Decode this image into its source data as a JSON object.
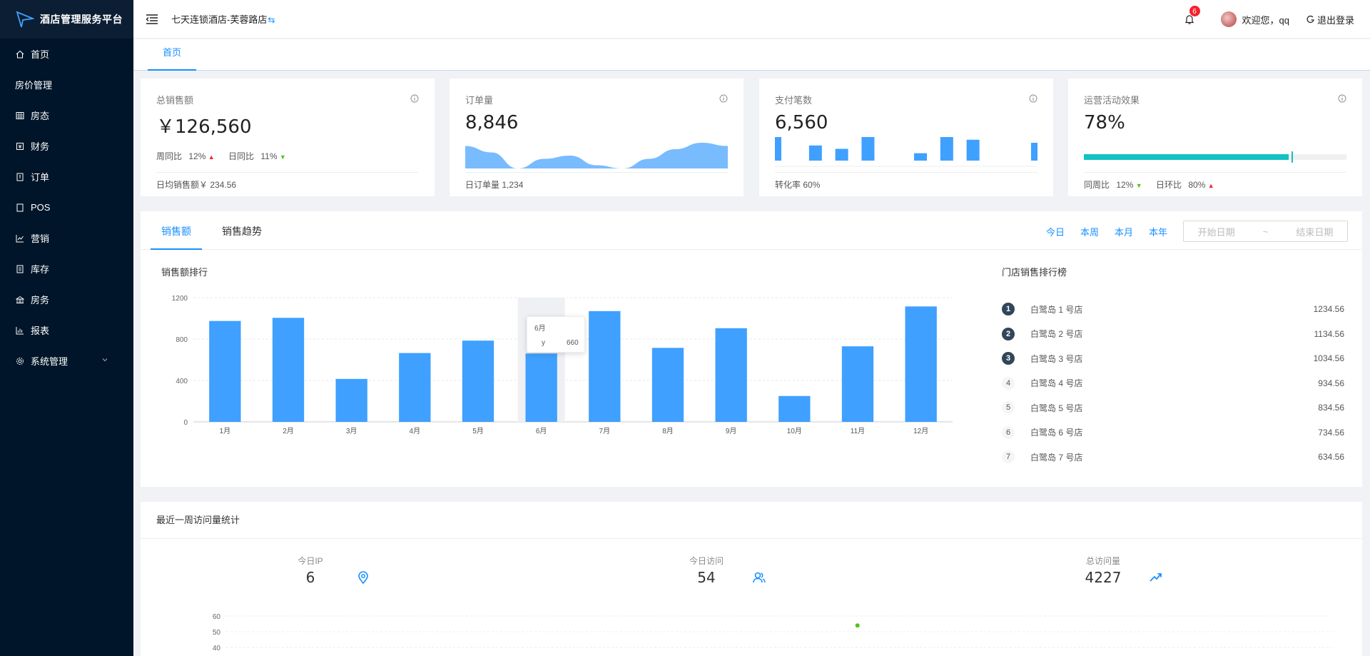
{
  "app": {
    "title": "酒店管理服务平台"
  },
  "sidebar": {
    "items": [
      {
        "label": "首页",
        "icon": "home-icon"
      },
      {
        "label": "房价管理",
        "icon": ""
      },
      {
        "label": "房态",
        "icon": "grid-icon"
      },
      {
        "label": "财务",
        "icon": "finance-icon"
      },
      {
        "label": "订单",
        "icon": "order-icon"
      },
      {
        "label": "POS",
        "icon": "pos-icon"
      },
      {
        "label": "营销",
        "icon": "chart-line-icon"
      },
      {
        "label": "库存",
        "icon": "inventory-icon"
      },
      {
        "label": "房务",
        "icon": "house-icon"
      },
      {
        "label": "报表",
        "icon": "report-icon"
      },
      {
        "label": "系统管理",
        "icon": "gear-icon"
      }
    ]
  },
  "header": {
    "hotel_name": "七天连锁酒店-芙蓉路店",
    "switch_glyph": "⇆",
    "notification_count": "6",
    "welcome": "欢迎您，qq",
    "logout": "退出登录"
  },
  "tabs": {
    "home": "首页"
  },
  "cards": {
    "sales": {
      "title": "总销售额",
      "value": "￥126,560",
      "week_label": "周同比",
      "week_value": "12%",
      "day_label": "日同比",
      "day_value": "11%",
      "footer_label": "日均销售额￥",
      "footer_value": "234.56"
    },
    "orders": {
      "title": "订单量",
      "value": "8,846",
      "footer_label": "日订单量",
      "footer_value": "1,234"
    },
    "payments": {
      "title": "支付笔数",
      "value": "6,560",
      "footer_label": "转化率",
      "footer_value": "60%"
    },
    "operations": {
      "title": "运营活动效果",
      "value": "78%",
      "progress": 0.78,
      "target": 0.79,
      "week_label": "同周比",
      "week_value": "12%",
      "day_label": "日环比",
      "day_value": "80%"
    }
  },
  "sales_panel": {
    "tab_sales": "销售额",
    "tab_trend": "销售趋势",
    "ranges": [
      "今日",
      "本周",
      "本月",
      "本年"
    ],
    "start_placeholder": "开始日期",
    "separator": "~",
    "end_placeholder": "结束日期",
    "chart_title": "销售额排行",
    "rank_title": "门店销售排行榜",
    "ranking": [
      {
        "rank": "1",
        "name": "白鹭岛 1 号店",
        "value": "1234.56"
      },
      {
        "rank": "2",
        "name": "白鹭岛 2 号店",
        "value": "1134.56"
      },
      {
        "rank": "3",
        "name": "白鹭岛 3 号店",
        "value": "1034.56"
      },
      {
        "rank": "4",
        "name": "白鹭岛 4 号店",
        "value": "934.56"
      },
      {
        "rank": "5",
        "name": "白鹭岛 5 号店",
        "value": "834.56"
      },
      {
        "rank": "6",
        "name": "白鹭岛 6 号店",
        "value": "734.56"
      },
      {
        "rank": "7",
        "name": "白鹭岛 7 号店",
        "value": "634.56"
      }
    ],
    "tooltip": {
      "title": "6月",
      "series": "y",
      "value": "660"
    }
  },
  "visits": {
    "title": "最近一周访问量统计",
    "today_ip_label": "今日IP",
    "today_ip_value": "6",
    "today_visits_label": "今日访问",
    "today_visits_value": "54",
    "total_label": "总访问量",
    "total_value": "4227"
  },
  "colors": {
    "accent": "#1890ff",
    "bar": "#3fa0ff",
    "sidebar": "#001529",
    "progress": "#13c2c2",
    "up": "#f5222d",
    "down": "#52c41a"
  },
  "chart_data": [
    {
      "type": "bar",
      "title": "销售额排行",
      "categories": [
        "1月",
        "2月",
        "3月",
        "4月",
        "5月",
        "6月",
        "7月",
        "8月",
        "9月",
        "10月",
        "11月",
        "12月"
      ],
      "series": [
        {
          "name": "y",
          "values": [
            975,
            1005,
            415,
            665,
            785,
            660,
            1070,
            715,
            905,
            250,
            730,
            1115
          ]
        }
      ],
      "ylim": [
        0,
        1200
      ],
      "yticks": [
        0,
        400,
        800,
        1200
      ],
      "grid": true
    },
    {
      "type": "area",
      "title": "订单量",
      "values": [
        7,
        5,
        0,
        3,
        4,
        1,
        0,
        3,
        6,
        8,
        7
      ]
    },
    {
      "type": "bar",
      "title": "支付笔数",
      "values": [
        7,
        4.5,
        3.5,
        7,
        0,
        2.2,
        7,
        6.2,
        0,
        5.3
      ]
    },
    {
      "type": "scatter",
      "title": "最近一周访问量统计",
      "x": [
        4
      ],
      "y": [
        54
      ],
      "ylim": [
        40,
        60
      ],
      "yticks": [
        40,
        50,
        60
      ]
    }
  ]
}
